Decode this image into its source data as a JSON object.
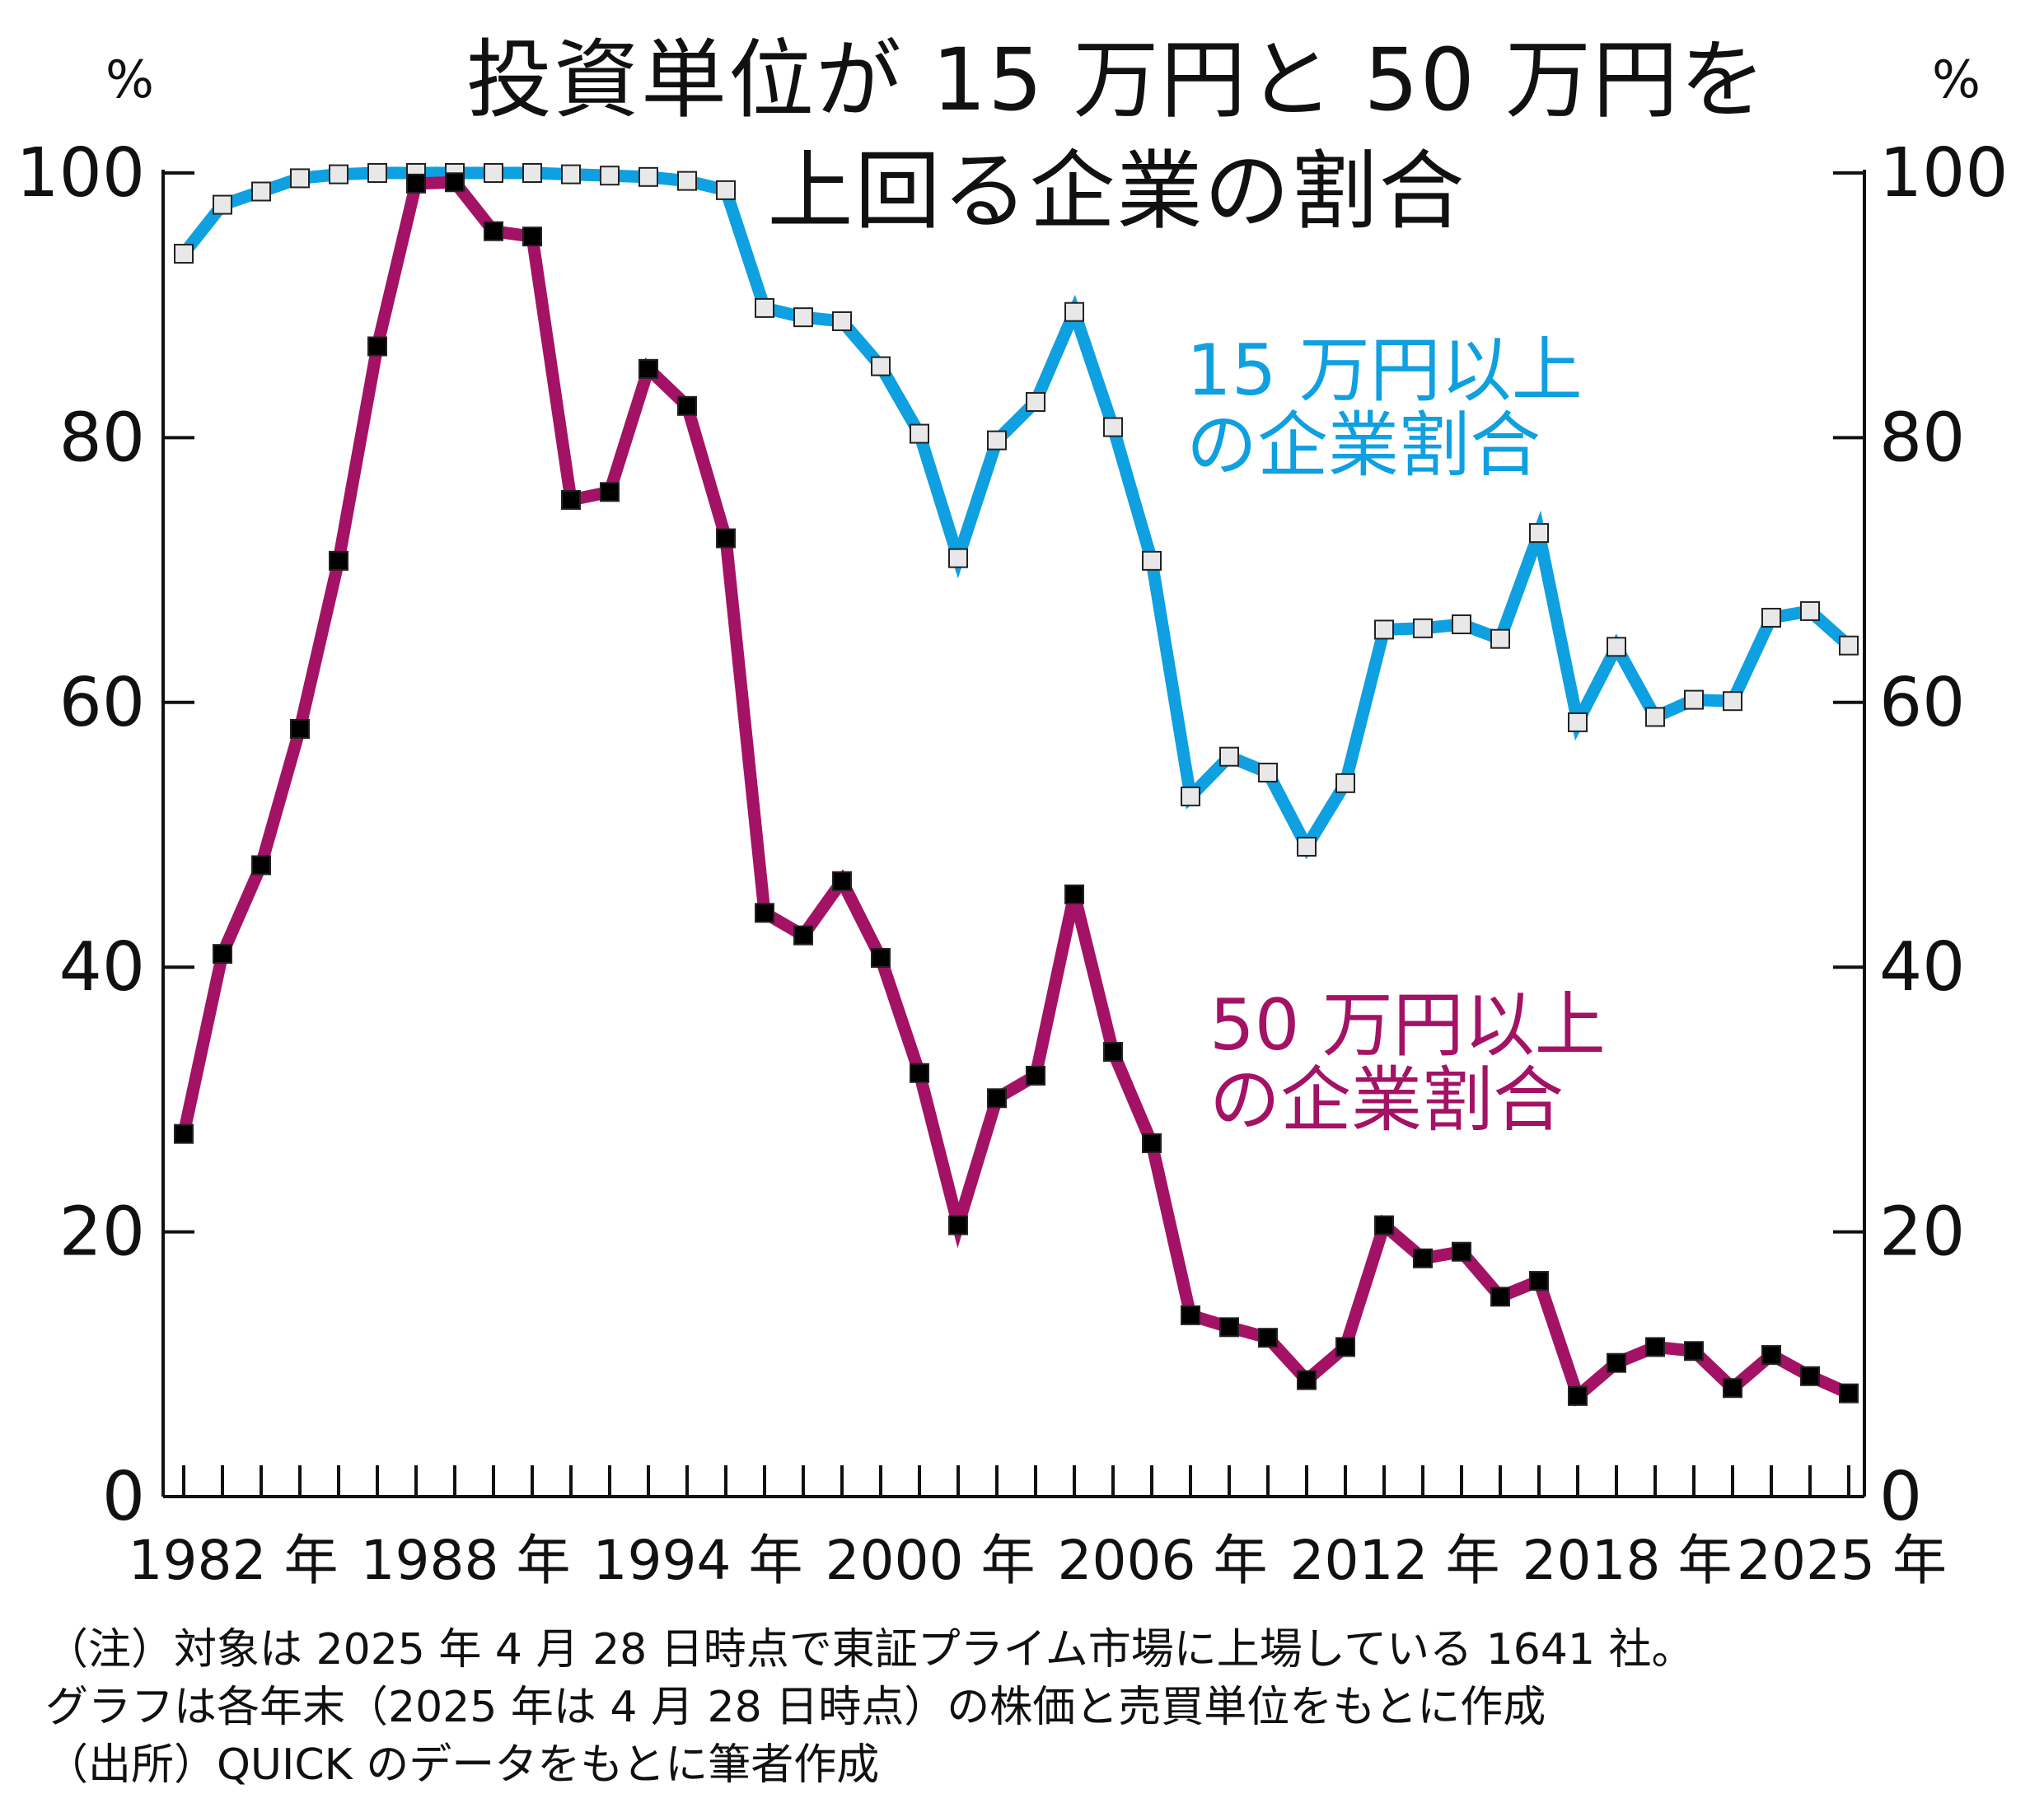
{
  "title": [
    "投資単位が 15 万円と 50 万円を",
    "上回る企業の割合"
  ],
  "y_unit_left": "%",
  "y_unit_right": "%",
  "notes": [
    "（注）対象は 2025 年 4 月 28 日時点で東証プライム市場に上場している 1641 社。",
    "グラフは各年末（2025 年は 4 月 28 日時点）の株価と売買単位をもとに作成",
    "（出所）QUICK のデータをもとに筆者作成"
  ],
  "colors": {
    "series_15": "#0ea0e0",
    "series_50": "#a41265",
    "marker_15": "#e8e8e8",
    "marker_50": "#000000",
    "axis": "#111111"
  },
  "chart_data": {
    "type": "line",
    "ylim": [
      0,
      100
    ],
    "yticks": [
      0,
      20,
      40,
      60,
      80,
      100
    ],
    "x": [
      1982,
      1983,
      1984,
      1985,
      1986,
      1987,
      1988,
      1989,
      1990,
      1991,
      1992,
      1993,
      1994,
      1995,
      1996,
      1997,
      1998,
      1999,
      2000,
      2001,
      2002,
      2003,
      2004,
      2005,
      2006,
      2007,
      2008,
      2009,
      2010,
      2011,
      2012,
      2013,
      2014,
      2015,
      2016,
      2017,
      2018,
      2019,
      2020,
      2021,
      2022,
      2023,
      2024,
      2025
    ],
    "xtick_labels": [
      {
        "x": 1982,
        "label": "1982 年"
      },
      {
        "x": 1988,
        "label": "1988 年"
      },
      {
        "x": 1994,
        "label": "1994 年"
      },
      {
        "x": 2000,
        "label": "2000 年"
      },
      {
        "x": 2006,
        "label": "2006 年"
      },
      {
        "x": 2012,
        "label": "2012 年"
      },
      {
        "x": 2018,
        "label": "2018 年"
      },
      {
        "x": 2025,
        "label": "2025 年"
      }
    ],
    "series": [
      {
        "key": "over15",
        "name": "15 万円以上の企業割合",
        "label_lines": [
          "15 万円以上",
          "の企業割合"
        ],
        "values": [
          93.9,
          97.6,
          98.6,
          99.6,
          99.9,
          100,
          100,
          100,
          100,
          100,
          99.9,
          99.8,
          99.7,
          99.4,
          98.7,
          89.8,
          89.1,
          88.8,
          85.4,
          80.3,
          70.9,
          79.8,
          82.7,
          89.5,
          80.8,
          70.7,
          52.9,
          55.9,
          54.7,
          49.1,
          53.9,
          65.5,
          65.6,
          65.9,
          64.8,
          72.8,
          58.5,
          64.2,
          58.9,
          60.2,
          60.1,
          66.4,
          66.9,
          64.3
        ]
      },
      {
        "key": "over50",
        "name": "50 万円以上の企業割合",
        "label_lines": [
          "50 万円以上",
          "の企業割合"
        ],
        "values": [
          27.4,
          41.0,
          47.7,
          58.0,
          70.7,
          86.9,
          99.2,
          99.3,
          95.6,
          95.2,
          75.3,
          75.9,
          85.2,
          82.4,
          72.4,
          44.1,
          42.4,
          46.5,
          40.7,
          32.0,
          20.5,
          30.1,
          31.8,
          45.5,
          33.6,
          26.7,
          13.7,
          12.8,
          12.0,
          8.8,
          11.3,
          20.5,
          18.0,
          18.5,
          15.1,
          16.3,
          7.6,
          10.1,
          11.3,
          11.0,
          8.2,
          10.7,
          9.1,
          7.8
        ]
      }
    ]
  }
}
